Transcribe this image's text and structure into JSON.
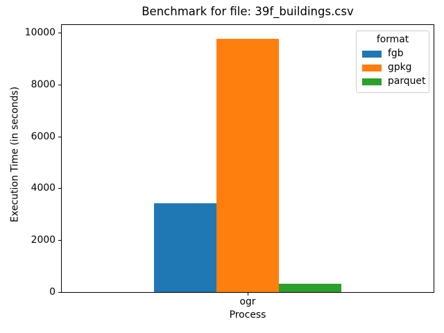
{
  "chart_data": {
    "type": "bar",
    "title": "Benchmark for file: 39f_buildings.csv",
    "xlabel": "Process",
    "ylabel": "Execution Time (in seconds)",
    "categories": [
      "ogr"
    ],
    "series": [
      {
        "name": "fgb",
        "color": "#1f77b4",
        "values": [
          3420
        ]
      },
      {
        "name": "gpkg",
        "color": "#ff7f0e",
        "values": [
          9790
        ]
      },
      {
        "name": "parquet",
        "color": "#2ca02c",
        "values": [
          320
        ]
      }
    ],
    "yticks": [
      0,
      2000,
      4000,
      6000,
      8000,
      10000
    ],
    "ylim": [
      0,
      10320
    ],
    "grid": false,
    "legend": {
      "title": "format",
      "position": "upper right"
    }
  },
  "colors": {
    "background": "#ffffff",
    "text": "#000000",
    "spine": "#000000",
    "legend_border": "#cccccc"
  }
}
